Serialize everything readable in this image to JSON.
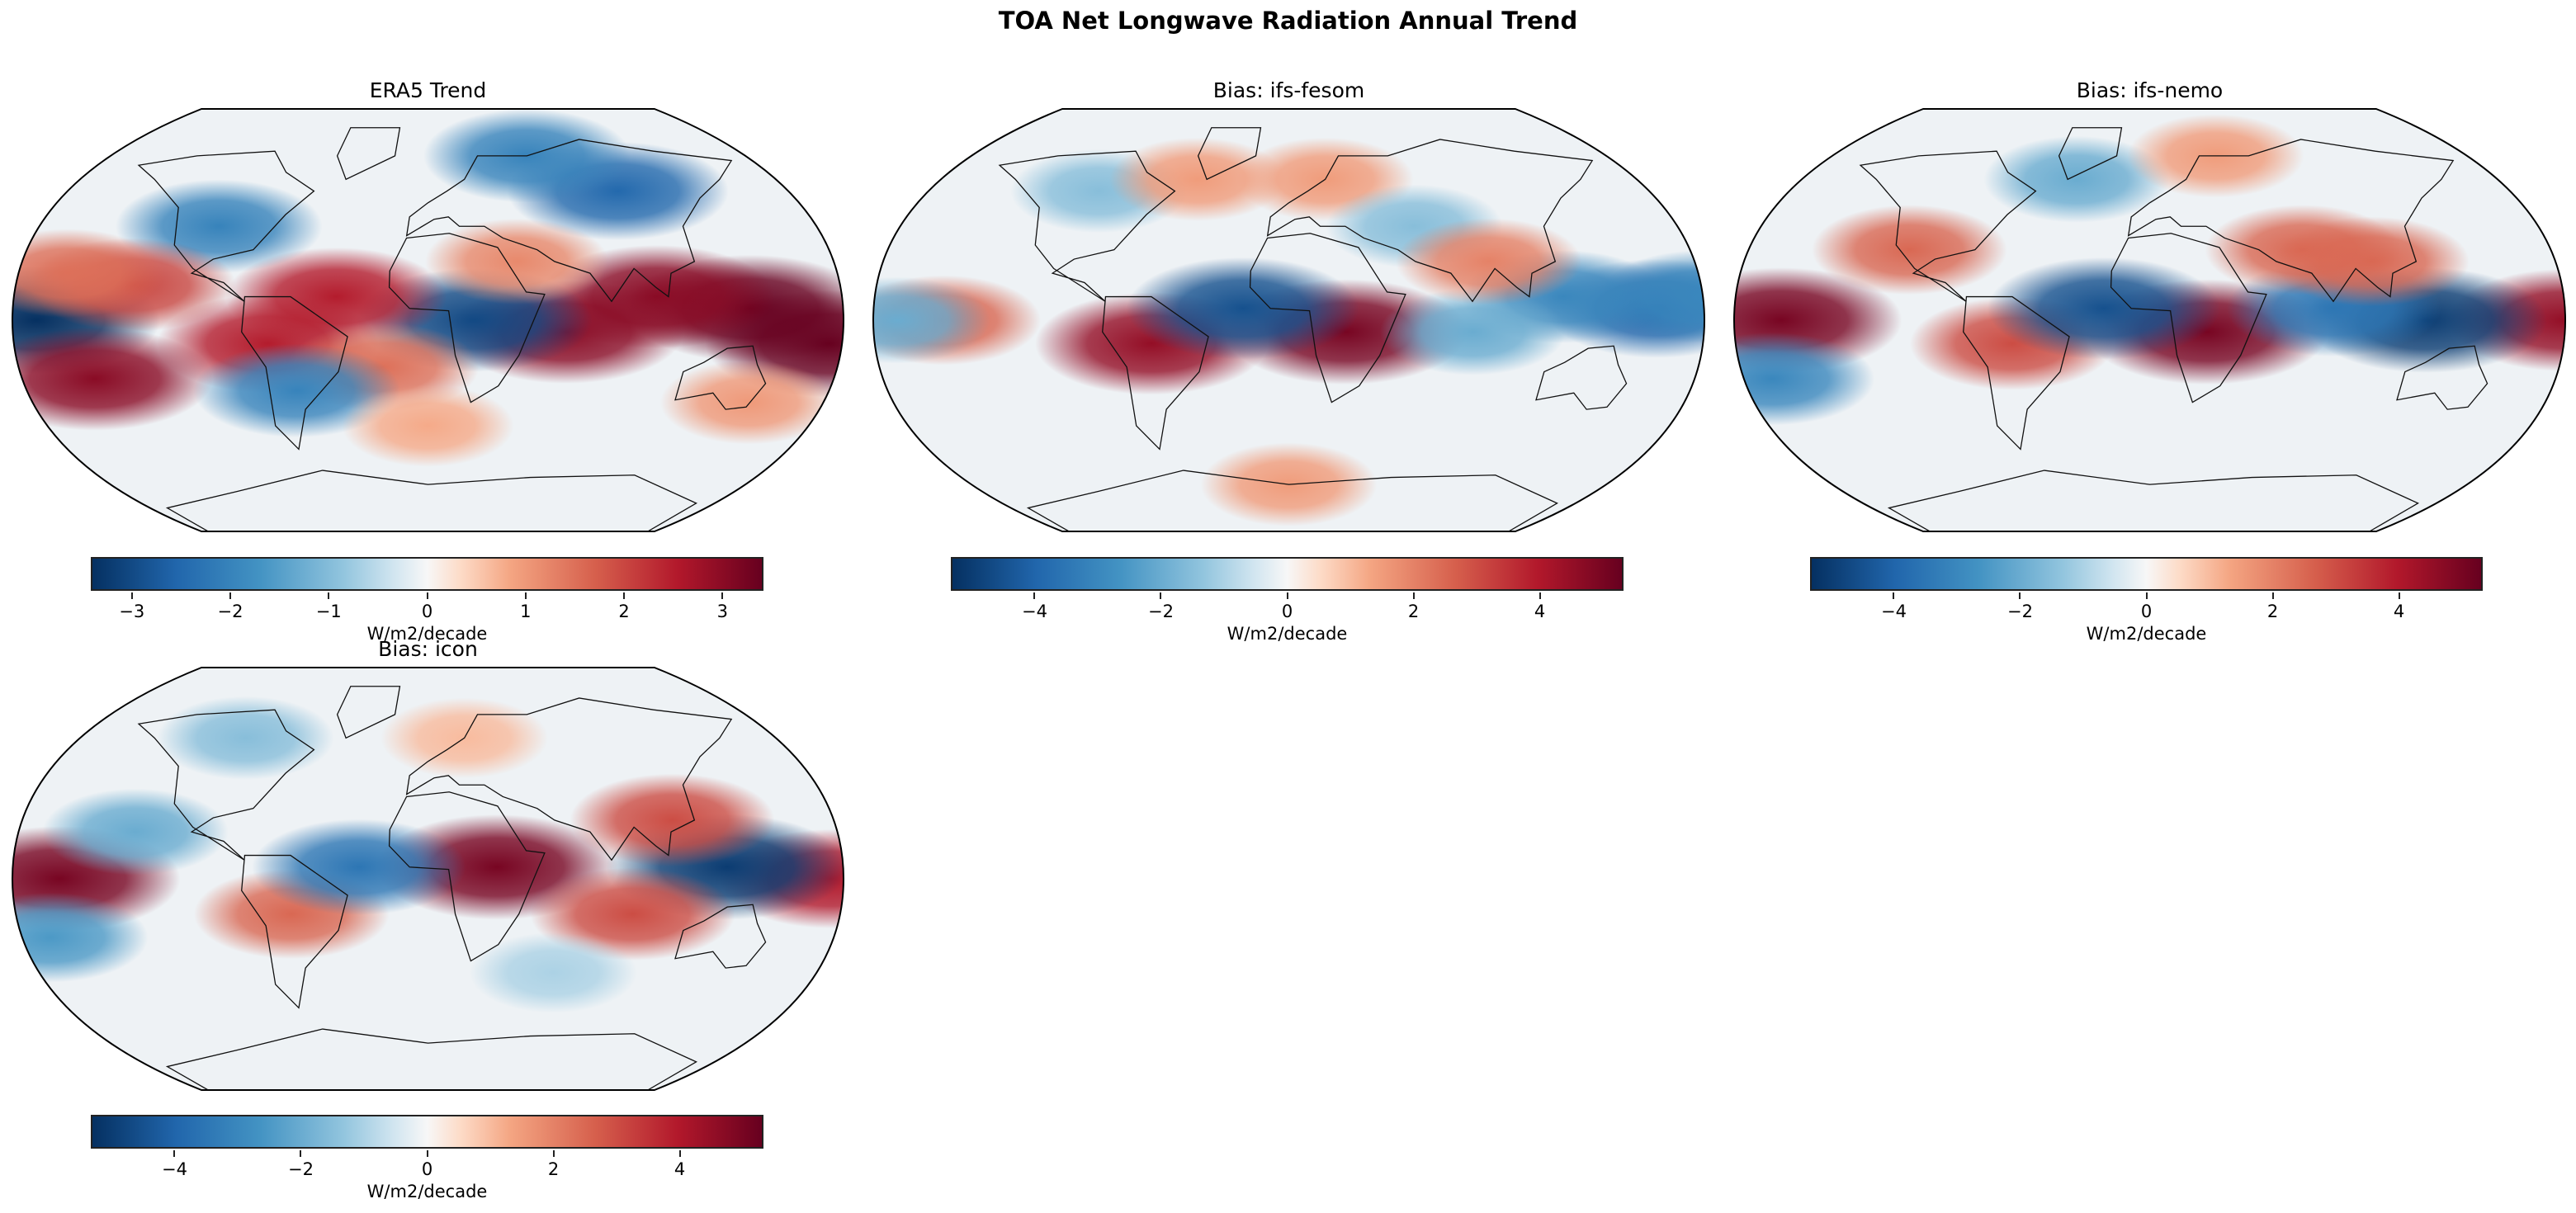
{
  "title": "TOA Net Longwave Radiation Annual Trend",
  "chart_data": {
    "type": "heatmap",
    "projection": "Robinson",
    "panels": [
      {
        "title": "ERA5 Trend",
        "colorbar_label": "W/m2/decade",
        "vlim": [
          -3.4,
          3.4
        ],
        "ticks": [
          -3,
          -2,
          -1,
          0,
          1,
          2,
          3
        ],
        "tick_labels": [
          "−3",
          "−2",
          "−1",
          "0",
          "1",
          "2",
          "3"
        ],
        "features": [
          [
            -170,
            0,
            -3.4
          ],
          [
            175,
            -10,
            3.4
          ],
          [
            140,
            5,
            3.4
          ],
          [
            100,
            10,
            3
          ],
          [
            60,
            -5,
            3
          ],
          [
            20,
            0,
            -3
          ],
          [
            -70,
            -10,
            2.5
          ],
          [
            -40,
            10,
            2.5
          ],
          [
            -150,
            -25,
            3
          ],
          [
            -100,
            40,
            -2
          ],
          [
            100,
            55,
            -2.5
          ],
          [
            60,
            70,
            -2
          ],
          [
            -20,
            -20,
            1.5
          ],
          [
            150,
            -35,
            1
          ],
          [
            -60,
            -30,
            -2
          ],
          [
            0,
            -45,
            0.8
          ],
          [
            40,
            25,
            1.2
          ],
          [
            -130,
            15,
            2
          ],
          [
            -160,
            20,
            1.5
          ]
        ]
      },
      {
        "title": "Bias: ifs-fesom",
        "colorbar_label": "W/m2/decade",
        "vlim": [
          -5.3,
          5.3
        ],
        "ticks": [
          -4,
          -2,
          0,
          2,
          4
        ],
        "tick_labels": [
          "−4",
          "−2",
          "0",
          "2",
          "4"
        ],
        "features": [
          [
            -60,
            -10,
            4.5
          ],
          [
            25,
            -5,
            5
          ],
          [
            -20,
            5,
            -4.5
          ],
          [
            -150,
            0,
            2.5
          ],
          [
            160,
            5,
            -4
          ],
          [
            120,
            10,
            -3
          ],
          [
            80,
            -5,
            -2
          ],
          [
            -100,
            55,
            -1.5
          ],
          [
            20,
            60,
            1.5
          ],
          [
            60,
            40,
            -1.5
          ],
          [
            -50,
            60,
            1.5
          ],
          [
            0,
            -70,
            1.5
          ],
          [
            90,
            25,
            2
          ],
          [
            -170,
            0,
            -2
          ],
          [
            180,
            10,
            -3
          ]
        ]
      },
      {
        "title": "Bias: ifs-nemo",
        "colorbar_label": "W/m2/decade",
        "vlim": [
          -5.3,
          5.3
        ],
        "ticks": [
          -4,
          -2,
          0,
          2,
          4
        ],
        "tick_labels": [
          "−4",
          "−2",
          "0",
          "2",
          "4"
        ],
        "features": [
          [
            -160,
            0,
            5
          ],
          [
            180,
            0,
            4.5
          ],
          [
            -110,
            30,
            2.5
          ],
          [
            25,
            -5,
            5
          ],
          [
            -60,
            -10,
            3
          ],
          [
            -20,
            5,
            -4.5
          ],
          [
            120,
            0,
            -5
          ],
          [
            80,
            5,
            -3.5
          ],
          [
            -170,
            -25,
            -3
          ],
          [
            70,
            30,
            2.5
          ],
          [
            100,
            25,
            2.5
          ],
          [
            -40,
            60,
            -2
          ],
          [
            40,
            70,
            1.5
          ]
        ]
      },
      {
        "title": "Bias: icon",
        "colorbar_label": "W/m2/decade",
        "vlim": [
          -5.3,
          5.3
        ],
        "ticks": [
          -4,
          -2,
          0,
          2,
          4
        ],
        "tick_labels": [
          "−4",
          "−2",
          "0",
          "2",
          "4"
        ],
        "features": [
          [
            -160,
            0,
            5
          ],
          [
            175,
            0,
            4
          ],
          [
            30,
            5,
            5
          ],
          [
            -60,
            -15,
            2.5
          ],
          [
            -30,
            5,
            -3.5
          ],
          [
            130,
            5,
            -5
          ],
          [
            110,
            25,
            3
          ],
          [
            90,
            -15,
            3
          ],
          [
            -170,
            -25,
            -2.5
          ],
          [
            -100,
            60,
            -1.5
          ],
          [
            20,
            60,
            1
          ],
          [
            -130,
            20,
            -2
          ],
          [
            60,
            -40,
            -1
          ]
        ]
      }
    ]
  }
}
